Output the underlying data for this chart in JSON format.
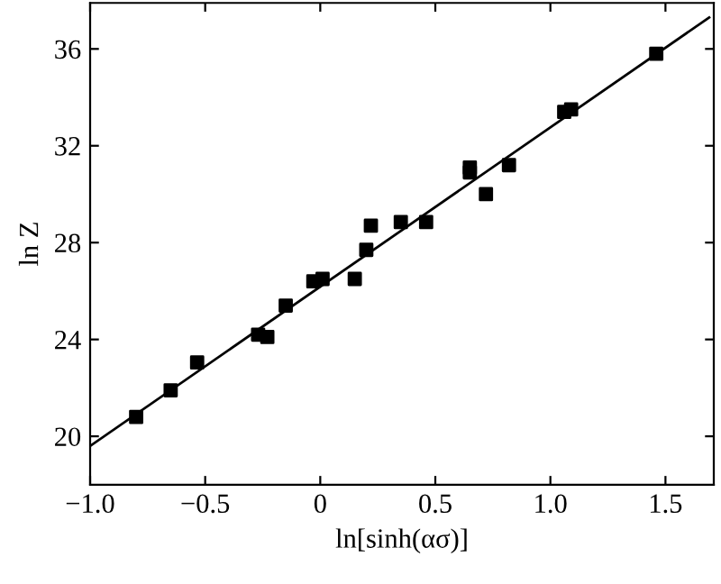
{
  "chart_data": {
    "type": "scatter",
    "xlabel": "ln[sinh(ασ)]",
    "ylabel": "ln Z",
    "xlim": [
      -1.0,
      1.71
    ],
    "ylim": [
      18.0,
      37.9
    ],
    "xticks": [
      {
        "value": -1.0,
        "label": "−1.0"
      },
      {
        "value": -0.5,
        "label": "−0.5"
      },
      {
        "value": 0,
        "label": "0"
      },
      {
        "value": 0.5,
        "label": "0.5"
      },
      {
        "value": 1.0,
        "label": "1.0"
      },
      {
        "value": 1.5,
        "label": "1.5"
      }
    ],
    "yticks": [
      20,
      24,
      28,
      32,
      36
    ],
    "grid": false,
    "series": [
      {
        "marker": "square",
        "color": "#000000",
        "x": [
          -0.8,
          -0.65,
          -0.535,
          -0.27,
          -0.23,
          -0.15,
          -0.03,
          0.01,
          0.15,
          0.2,
          0.22,
          0.35,
          0.46,
          0.65,
          0.65,
          0.72,
          0.82,
          1.06,
          1.09,
          1.46
        ],
        "values": [
          20.8,
          21.9,
          23.05,
          24.2,
          24.1,
          25.4,
          26.4,
          26.5,
          26.5,
          27.7,
          28.7,
          28.85,
          28.85,
          31.1,
          30.9,
          30.0,
          31.2,
          33.4,
          33.5,
          35.8
        ]
      },
      {
        "type": "line",
        "marker": "none",
        "color": "#000000",
        "x": [
          -1.0,
          1.69
        ],
        "values": [
          19.6,
          37.3
        ]
      }
    ]
  }
}
